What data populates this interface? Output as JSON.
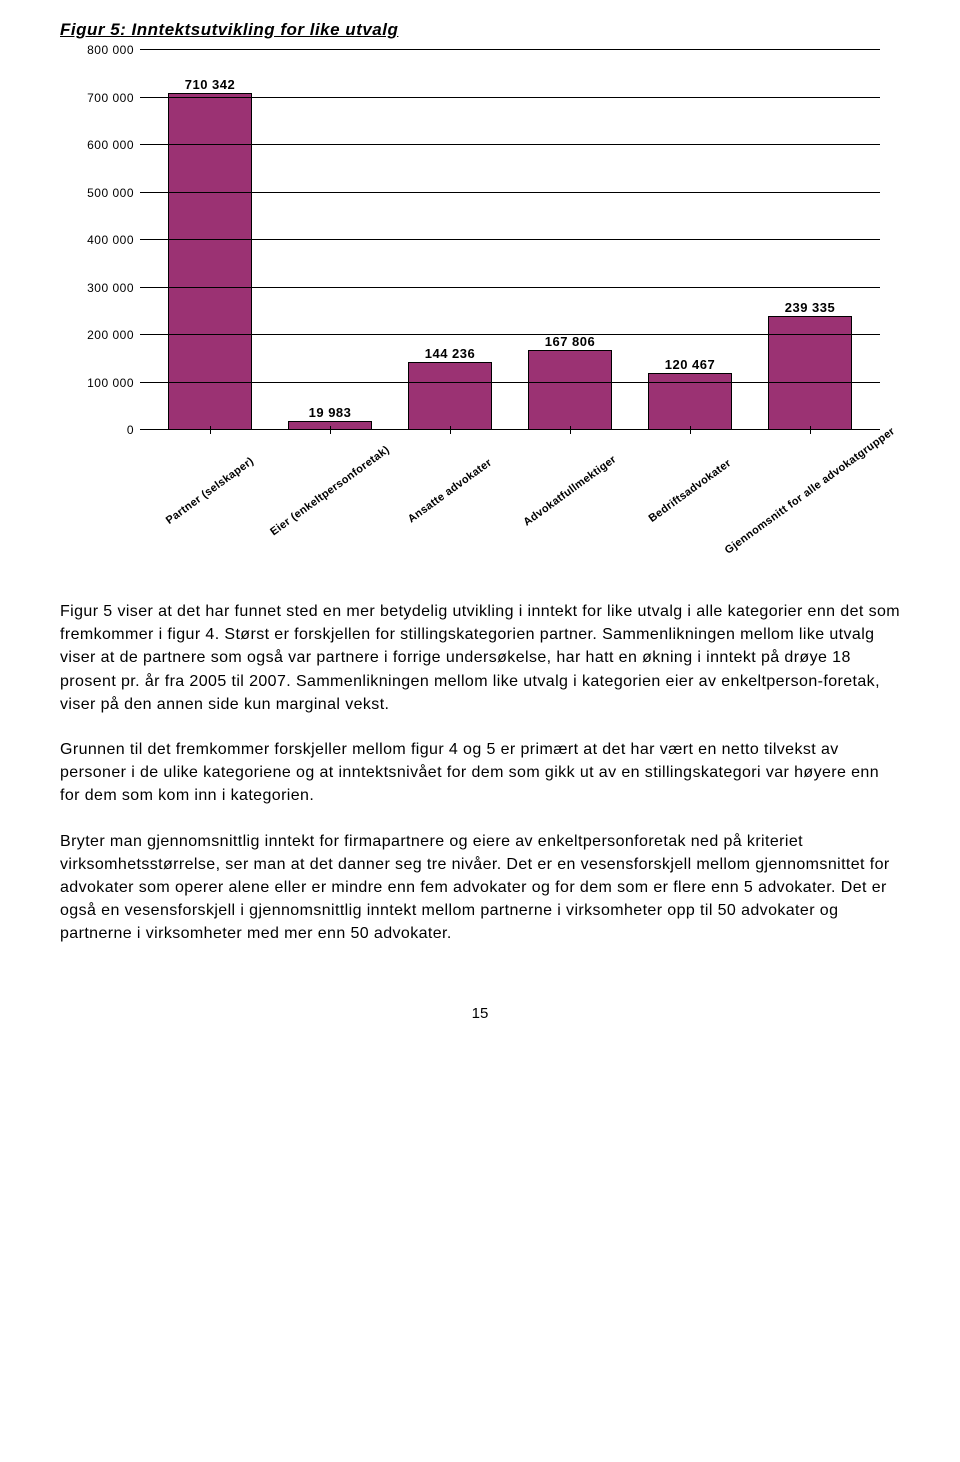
{
  "chart": {
    "type": "bar",
    "title": "Figur 5: Inntektsutvikling for like utvalg",
    "y": {
      "max": 800000,
      "step": 100000,
      "ticks": [
        "0",
        "100 000",
        "200 000",
        "300 000",
        "400 000",
        "500 000",
        "600 000",
        "700 000",
        "800 000"
      ]
    },
    "bar_color": "#9b3273",
    "border_color": "#000000",
    "background": "#ffffff",
    "categories": [
      {
        "label": "Partner (selskaper)",
        "value": 710342,
        "value_label": "710 342"
      },
      {
        "label": "Eier (enkeltpersonforetak)",
        "value": 19983,
        "value_label": "19 983"
      },
      {
        "label": "Ansatte advokater",
        "value": 144236,
        "value_label": "144 236"
      },
      {
        "label": "Advokatfullmektiger",
        "value": 167806,
        "value_label": "167 806"
      },
      {
        "label": "Bedriftsadvokater",
        "value": 120467,
        "value_label": "120 467"
      },
      {
        "label": "Gjennomsnitt for alle advokatgrupper",
        "value": 239335,
        "value_label": "239 335"
      }
    ]
  },
  "paragraphs": {
    "p1": "Figur 5 viser at det har funnet sted en mer betydelig utvikling i inntekt for like utvalg i alle kategorier enn det som fremkommer i figur 4. Størst er forskjellen for stillingskategorien partner. Sammenlikningen mellom like utvalg viser at de partnere som også var partnere i forrige undersøkelse, har hatt en økning i inntekt på drøye 18 prosent pr. år fra 2005 til 2007. Sammenlikningen mellom like utvalg i kategorien eier av enkeltperson-foretak, viser på den annen side kun marginal vekst.",
    "p2": "Grunnen til det fremkommer forskjeller mellom figur 4 og 5 er primært at det har vært en netto tilvekst av personer i de ulike kategoriene og at inntektsnivået for dem som gikk ut av en stillingskategori var høyere enn for dem som kom inn i kategorien.",
    "p3": "Bryter man gjennomsnittlig inntekt for firmapartnere og eiere av enkeltpersonforetak ned på kriteriet virksomhetsstørrelse, ser man at det danner seg tre nivåer. Det er en vesensforskjell mellom gjennomsnittet for advokater som operer alene eller er mindre enn fem advokater og for dem som er flere enn 5 advokater. Det er også en vesensforskjell i gjennomsnittlig inntekt mellom partnerne i virksomheter opp til 50 advokater og partnerne i virksomheter med mer enn 50 advokater."
  },
  "page_number": "15"
}
